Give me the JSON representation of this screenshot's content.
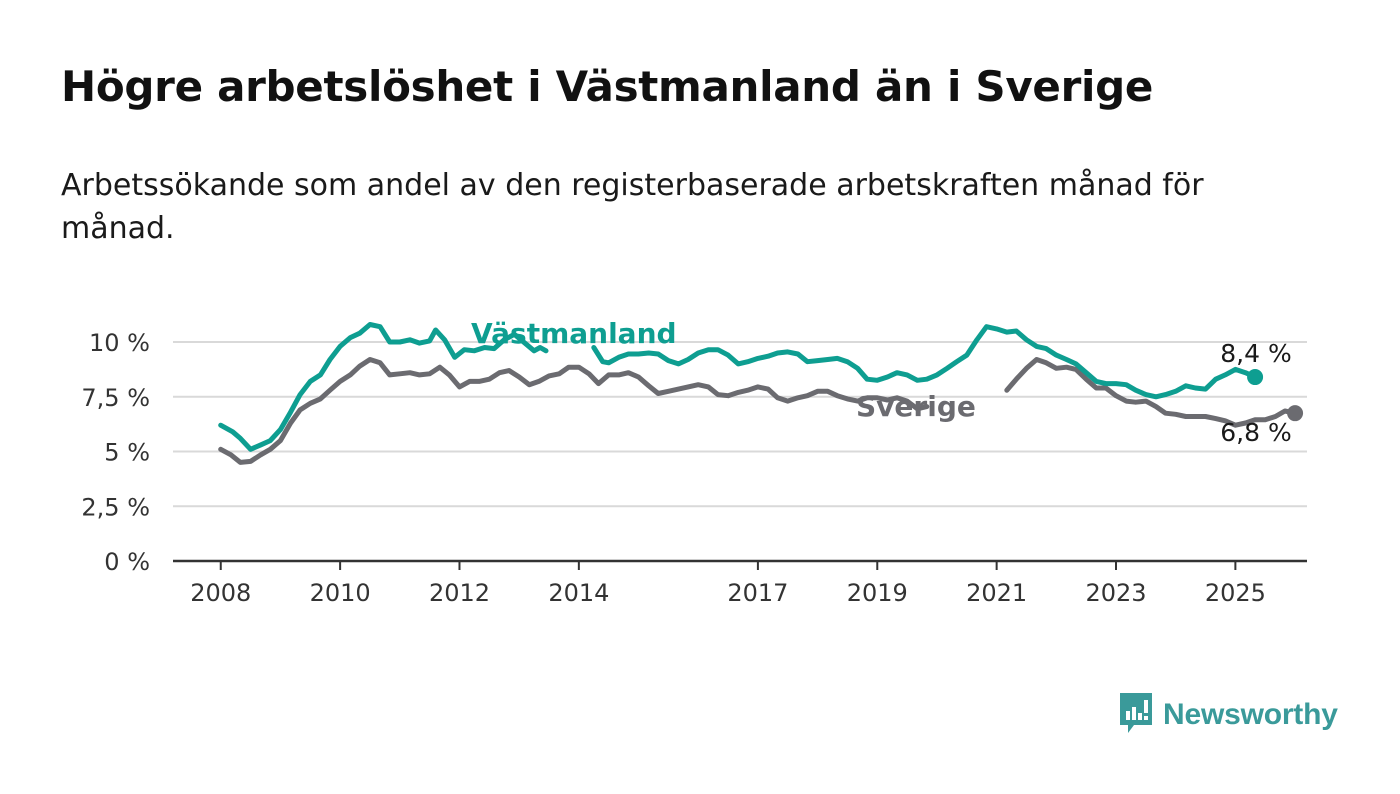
{
  "title": "Högre arbetslöshet i Västmanland än i Sverige",
  "subtitle": "Arbetssökande som andel av den registerbaserade arbetskraften månad för månad.",
  "brand": {
    "name": "Newsworthy",
    "color": "#3a9a9a",
    "icon": "newsworthy-logo-icon"
  },
  "colors": {
    "vastmanland": "#0e9e91",
    "sverige": "#6b6b70",
    "grid": "#d9d9d9",
    "axis": "#333333"
  },
  "chart_data": {
    "type": "line",
    "title": "Högre arbetslöshet i Västmanland än i Sverige",
    "xlabel": "",
    "ylabel": "",
    "ylim": [
      0,
      10
    ],
    "yticks": [
      0,
      2.5,
      5,
      7.5,
      10
    ],
    "ytick_labels": [
      "0 %",
      "2,5 %",
      "5 %",
      "7,5 %",
      "10 %"
    ],
    "xlim": [
      2007.2,
      2026.2
    ],
    "xticks": [
      2008,
      2010,
      2012,
      2014,
      2017,
      2019,
      2021,
      2023,
      2025
    ],
    "xtick_labels": [
      "2008",
      "2010",
      "2012",
      "2014",
      "2017",
      "2019",
      "2021",
      "2023",
      "2025"
    ],
    "grid": true,
    "series": [
      {
        "name": "Västmanland",
        "end_label": "8,4 %",
        "points": [
          [
            2008.0,
            6.2
          ],
          [
            2008.2,
            5.9
          ],
          [
            2008.33,
            5.6
          ],
          [
            2008.5,
            5.1
          ],
          [
            2008.67,
            5.3
          ],
          [
            2008.83,
            5.5
          ],
          [
            2009.0,
            6.0
          ],
          [
            2009.17,
            6.8
          ],
          [
            2009.33,
            7.6
          ],
          [
            2009.5,
            8.2
          ],
          [
            2009.67,
            8.5
          ],
          [
            2009.83,
            9.2
          ],
          [
            2010.0,
            9.8
          ],
          [
            2010.17,
            10.2
          ],
          [
            2010.33,
            10.4
          ],
          [
            2010.5,
            10.8
          ],
          [
            2010.67,
            10.7
          ],
          [
            2010.83,
            10.0
          ],
          [
            2011.0,
            10.0
          ],
          [
            2011.17,
            10.1
          ],
          [
            2011.33,
            9.95
          ],
          [
            2011.5,
            10.05
          ],
          [
            2011.6,
            10.55
          ],
          [
            2011.75,
            10.1
          ],
          [
            2011.92,
            9.3
          ],
          [
            2012.08,
            9.65
          ],
          [
            2012.25,
            9.6
          ],
          [
            2012.42,
            9.75
          ],
          [
            2012.58,
            9.7
          ],
          [
            2012.75,
            10.1
          ],
          [
            2012.92,
            10.35
          ],
          [
            2013.25,
            9.6
          ],
          [
            2013.35,
            9.75
          ],
          [
            2013.45,
            9.6
          ],
          [
            2014.25,
            9.75
          ],
          [
            2014.4,
            9.1
          ],
          [
            2014.5,
            9.05
          ],
          [
            2014.67,
            9.3
          ],
          [
            2014.83,
            9.45
          ],
          [
            2015.0,
            9.45
          ],
          [
            2015.17,
            9.5
          ],
          [
            2015.33,
            9.45
          ],
          [
            2015.5,
            9.15
          ],
          [
            2015.67,
            9.0
          ],
          [
            2015.83,
            9.2
          ],
          [
            2016.0,
            9.5
          ],
          [
            2016.17,
            9.65
          ],
          [
            2016.33,
            9.65
          ],
          [
            2016.5,
            9.4
          ],
          [
            2016.67,
            9.0
          ],
          [
            2016.83,
            9.1
          ],
          [
            2017.0,
            9.25
          ],
          [
            2017.17,
            9.35
          ],
          [
            2017.33,
            9.5
          ],
          [
            2017.5,
            9.55
          ],
          [
            2017.67,
            9.45
          ],
          [
            2017.83,
            9.1
          ],
          [
            2018.0,
            9.15
          ],
          [
            2018.17,
            9.2
          ],
          [
            2018.33,
            9.25
          ],
          [
            2018.5,
            9.1
          ],
          [
            2018.67,
            8.8
          ],
          [
            2018.83,
            8.3
          ],
          [
            2019.0,
            8.25
          ],
          [
            2019.17,
            8.4
          ],
          [
            2019.33,
            8.6
          ],
          [
            2019.5,
            8.5
          ],
          [
            2019.67,
            8.25
          ],
          [
            2019.83,
            8.3
          ],
          [
            2020.0,
            8.5
          ],
          [
            2020.17,
            8.8
          ],
          [
            2020.33,
            9.1
          ],
          [
            2020.5,
            9.4
          ],
          [
            2020.67,
            10.1
          ],
          [
            2020.83,
            10.7
          ],
          [
            2021.0,
            10.6
          ],
          [
            2021.17,
            10.45
          ],
          [
            2021.33,
            10.5
          ],
          [
            2021.5,
            10.1
          ],
          [
            2021.67,
            9.8
          ],
          [
            2021.83,
            9.7
          ],
          [
            2022.0,
            9.4
          ],
          [
            2022.17,
            9.2
          ],
          [
            2022.33,
            9.0
          ],
          [
            2022.5,
            8.6
          ],
          [
            2022.67,
            8.2
          ],
          [
            2022.83,
            8.1
          ],
          [
            2023.0,
            8.1
          ],
          [
            2023.17,
            8.05
          ],
          [
            2023.33,
            7.8
          ],
          [
            2023.5,
            7.6
          ],
          [
            2023.67,
            7.5
          ],
          [
            2023.83,
            7.6
          ],
          [
            2024.0,
            7.75
          ],
          [
            2024.17,
            8.0
          ],
          [
            2024.33,
            7.9
          ],
          [
            2024.5,
            7.85
          ],
          [
            2024.67,
            8.3
          ],
          [
            2024.83,
            8.5
          ],
          [
            2025.0,
            8.75
          ],
          [
            2025.17,
            8.6
          ],
          [
            2025.33,
            8.4
          ]
        ]
      },
      {
        "name": "Sverige",
        "end_label": "6,8 %",
        "points": [
          [
            2008.0,
            5.1
          ],
          [
            2008.17,
            4.85
          ],
          [
            2008.33,
            4.5
          ],
          [
            2008.5,
            4.55
          ],
          [
            2008.67,
            4.85
          ],
          [
            2008.83,
            5.1
          ],
          [
            2009.0,
            5.5
          ],
          [
            2009.17,
            6.3
          ],
          [
            2009.33,
            6.9
          ],
          [
            2009.5,
            7.2
          ],
          [
            2009.67,
            7.4
          ],
          [
            2009.83,
            7.8
          ],
          [
            2010.0,
            8.2
          ],
          [
            2010.17,
            8.5
          ],
          [
            2010.33,
            8.9
          ],
          [
            2010.5,
            9.2
          ],
          [
            2010.67,
            9.05
          ],
          [
            2010.83,
            8.5
          ],
          [
            2011.0,
            8.55
          ],
          [
            2011.17,
            8.6
          ],
          [
            2011.33,
            8.5
          ],
          [
            2011.5,
            8.55
          ],
          [
            2011.67,
            8.85
          ],
          [
            2011.83,
            8.5
          ],
          [
            2012.0,
            7.95
          ],
          [
            2012.17,
            8.2
          ],
          [
            2012.33,
            8.2
          ],
          [
            2012.5,
            8.3
          ],
          [
            2012.67,
            8.6
          ],
          [
            2012.83,
            8.7
          ],
          [
            2013.0,
            8.4
          ],
          [
            2013.17,
            8.05
          ],
          [
            2013.33,
            8.2
          ],
          [
            2013.5,
            8.45
          ],
          [
            2013.67,
            8.55
          ],
          [
            2013.83,
            8.85
          ],
          [
            2014.0,
            8.85
          ],
          [
            2014.17,
            8.55
          ],
          [
            2014.33,
            8.1
          ],
          [
            2014.5,
            8.5
          ],
          [
            2014.67,
            8.5
          ],
          [
            2014.83,
            8.6
          ],
          [
            2015.0,
            8.4
          ],
          [
            2015.17,
            8.0
          ],
          [
            2015.33,
            7.65
          ],
          [
            2015.5,
            7.75
          ],
          [
            2015.67,
            7.85
          ],
          [
            2015.83,
            7.95
          ],
          [
            2016.0,
            8.05
          ],
          [
            2016.17,
            7.95
          ],
          [
            2016.33,
            7.6
          ],
          [
            2016.5,
            7.55
          ],
          [
            2016.67,
            7.7
          ],
          [
            2016.83,
            7.8
          ],
          [
            2017.0,
            7.95
          ],
          [
            2017.17,
            7.85
          ],
          [
            2017.33,
            7.45
          ],
          [
            2017.5,
            7.3
          ],
          [
            2017.67,
            7.45
          ],
          [
            2017.83,
            7.55
          ],
          [
            2018.0,
            7.75
          ],
          [
            2018.17,
            7.75
          ],
          [
            2018.33,
            7.55
          ],
          [
            2018.5,
            7.4
          ],
          [
            2018.67,
            7.3
          ],
          [
            2018.83,
            7.45
          ],
          [
            2019.0,
            7.45
          ],
          [
            2019.17,
            7.35
          ],
          [
            2019.33,
            7.45
          ],
          [
            2019.5,
            7.3
          ],
          [
            2019.67,
            6.95
          ],
          [
            2019.83,
            7.05
          ],
          [
            2021.17,
            7.8
          ],
          [
            2021.33,
            8.3
          ],
          [
            2021.5,
            8.8
          ],
          [
            2021.67,
            9.2
          ],
          [
            2021.83,
            9.05
          ],
          [
            2022.0,
            8.8
          ],
          [
            2022.17,
            8.85
          ],
          [
            2022.33,
            8.75
          ],
          [
            2022.5,
            8.3
          ],
          [
            2022.67,
            7.9
          ],
          [
            2022.83,
            7.9
          ],
          [
            2023.0,
            7.55
          ],
          [
            2023.17,
            7.3
          ],
          [
            2023.33,
            7.25
          ],
          [
            2023.5,
            7.3
          ],
          [
            2023.67,
            7.05
          ],
          [
            2023.83,
            6.75
          ],
          [
            2024.0,
            6.7
          ],
          [
            2024.17,
            6.6
          ],
          [
            2024.33,
            6.6
          ],
          [
            2024.5,
            6.6
          ],
          [
            2024.67,
            6.5
          ],
          [
            2024.83,
            6.4
          ],
          [
            2025.0,
            6.2
          ],
          [
            2025.17,
            6.3
          ],
          [
            2025.33,
            6.45
          ],
          [
            2025.5,
            6.45
          ],
          [
            2025.67,
            6.6
          ],
          [
            2025.83,
            6.85
          ],
          [
            2026.0,
            6.75
          ]
        ]
      }
    ]
  }
}
